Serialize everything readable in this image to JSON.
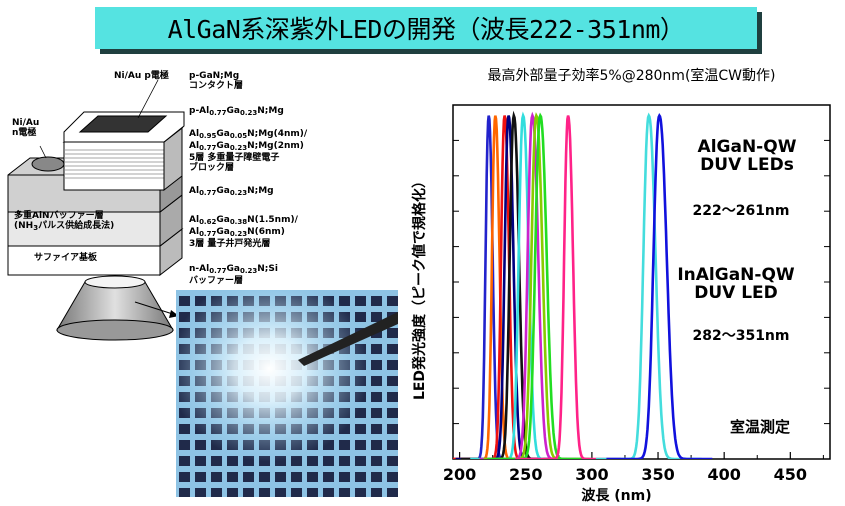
{
  "title": "AlGaN系深紫外LEDの開発（波長222-351nm）",
  "diagram": {
    "electrode_p": "Ni/Au p電極",
    "electrode_n": "Ni/Au\nn電極",
    "contact_layer": "p-GaN;Mg\nコンタクト層",
    "p_layer": "p-Al0.77Ga0.23N;Mg",
    "electron_block": "Al0.95Ga0.05N;Mg(4nm)/\nAl0.77Ga0.23N;Mg(2nm)\n5層 多重量子障壁電子\nブロック層",
    "p_cladding": "Al0.77Ga0.23N;Mg",
    "mqw": "Al0.62Ga0.38N(1.5nm)/\nAl0.77Ga0.23N(6nm)\n3層 量子井戸発光層",
    "n_layer": "n-Al0.77Ga0.23N;Si\nバッファー層",
    "buffer": "多重AlNバッファー層\n(NH3パルス供給成長法)",
    "substrate": "サファイア基板"
  },
  "chart_data": {
    "type": "line",
    "title": "最高外部量子効率5%@280nm(室温CW動作)",
    "xlabel": "波長 (nm)",
    "ylabel": "LED発光強度（ピーク値で規格化）",
    "xlim": [
      195,
      480
    ],
    "ylim": [
      0,
      1.0
    ],
    "xticks": [
      200,
      250,
      300,
      350,
      400,
      450
    ],
    "series": [
      {
        "peak": 222,
        "width": 3.2,
        "color": "#2222cc"
      },
      {
        "peak": 227,
        "width": 3.4,
        "color": "#ff6600"
      },
      {
        "peak": 234,
        "width": 3.6,
        "color": "#ee1111"
      },
      {
        "peak": 237,
        "width": 4.0,
        "color": "#000080"
      },
      {
        "peak": 241,
        "width": 4.2,
        "color": "#111111"
      },
      {
        "peak": 248,
        "width": 4.5,
        "color": "#33dddd"
      },
      {
        "peak": 255,
        "width": 4.8,
        "color": "#cc22cc"
      },
      {
        "peak": 258,
        "width": 5.0,
        "color": "#88cc00"
      },
      {
        "peak": 261,
        "width": 5.2,
        "color": "#22dd22"
      },
      {
        "peak": 282,
        "width": 4.0,
        "color": "#ff2288"
      },
      {
        "peak": 343,
        "width": 5.5,
        "color": "#44dddd"
      },
      {
        "peak": 351,
        "width": 6.0,
        "color": "#1111dd"
      }
    ],
    "annotations": {
      "algan_title": "AlGaN-QW\nDUV LEDs",
      "algan_range": "222〜261nm",
      "inalgan_title": "InAlGaN-QW\nDUV LED",
      "inalgan_range": "282〜351nm",
      "temp": "室温測定"
    }
  }
}
